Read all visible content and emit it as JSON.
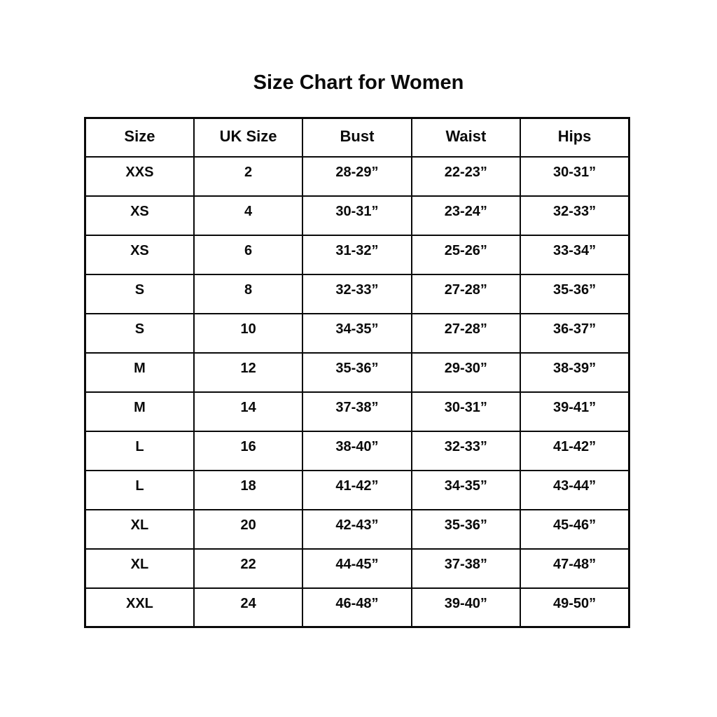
{
  "page": {
    "title": "Size Chart for Women"
  },
  "colors": {
    "text": "#0a0a0a",
    "border": "#0a0a0a",
    "background": "#ffffff"
  },
  "chart_data": {
    "type": "table",
    "title": "Size Chart for Women",
    "columns": [
      "Size",
      "UK Size",
      "Bust",
      "Waist",
      "Hips"
    ],
    "rows": [
      [
        "XXS",
        "2",
        "28-29”",
        "22-23”",
        "30-31”"
      ],
      [
        "XS",
        "4",
        "30-31”",
        "23-24”",
        "32-33”"
      ],
      [
        "XS",
        "6",
        "31-32”",
        "25-26”",
        "33-34”"
      ],
      [
        "S",
        "8",
        "32-33”",
        "27-28”",
        "35-36”"
      ],
      [
        "S",
        "10",
        "34-35”",
        "27-28”",
        "36-37”"
      ],
      [
        "M",
        "12",
        "35-36”",
        "29-30”",
        "38-39”"
      ],
      [
        "M",
        "14",
        "37-38”",
        "30-31”",
        "39-41”"
      ],
      [
        "L",
        "16",
        "38-40”",
        "32-33”",
        "41-42”"
      ],
      [
        "L",
        "18",
        "41-42”",
        "34-35”",
        "43-44”"
      ],
      [
        "XL",
        "20",
        "42-43”",
        "35-36”",
        "45-46”"
      ],
      [
        "XL",
        "22",
        "44-45”",
        "37-38”",
        "47-48”"
      ],
      [
        "XXL",
        "24",
        "46-48”",
        "39-40”",
        "49-50”"
      ]
    ]
  }
}
